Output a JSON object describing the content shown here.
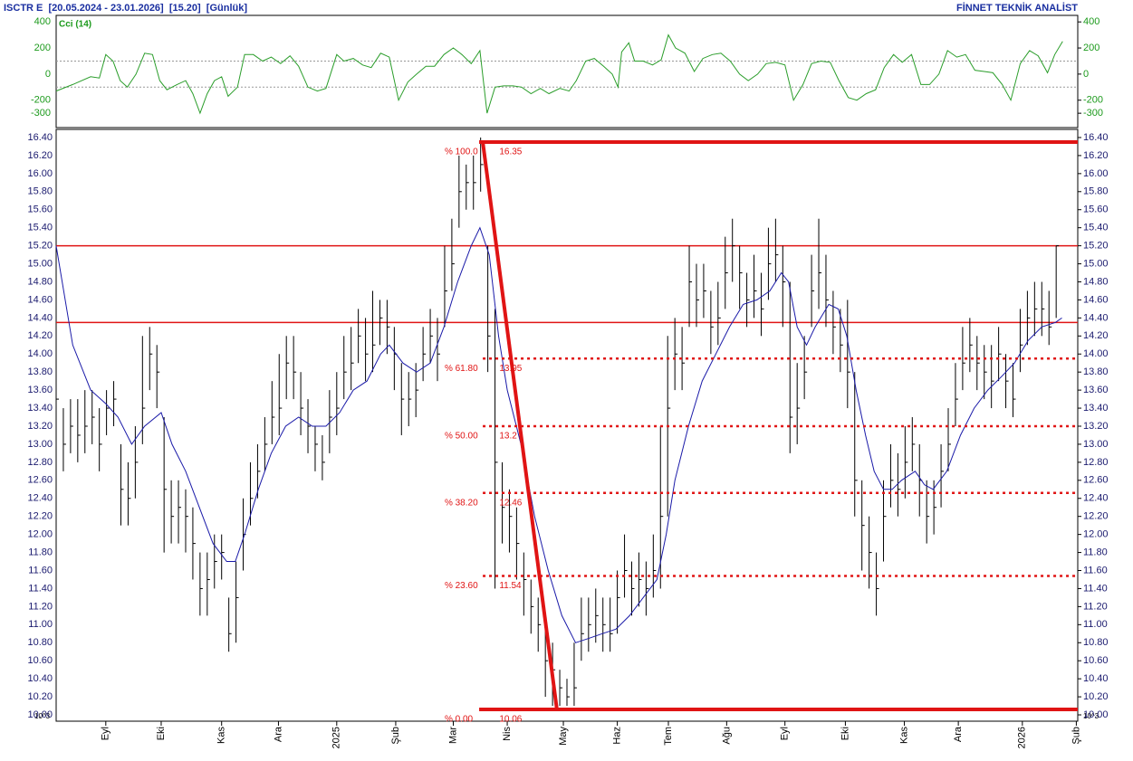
{
  "chart_data": {
    "type": "ohlc",
    "title": "ISCTR E  [20.05.2024 - 23.01.2026]  [15.20]  [Günlük]",
    "source": "FİNNET TEKNİK ANALİST",
    "scale_note": "10^3",
    "xlim": [
      0,
      142
    ],
    "xticks": [
      {
        "value": 6.9,
        "label": "Eyl"
      },
      {
        "value": 14.6,
        "label": "Eki"
      },
      {
        "value": 23,
        "label": "Kas"
      },
      {
        "value": 30.9,
        "label": "Ara"
      },
      {
        "value": 39,
        "label": "2025"
      },
      {
        "value": 47.2,
        "label": "Şub"
      },
      {
        "value": 55.2,
        "label": "Mar"
      },
      {
        "value": 62.7,
        "label": "Nis"
      },
      {
        "value": 70.5,
        "label": "May"
      },
      {
        "value": 78,
        "label": "Haz"
      },
      {
        "value": 85.1,
        "label": "Tem"
      },
      {
        "value": 93.2,
        "label": "Ağu"
      },
      {
        "value": 101.3,
        "label": "Eyl"
      },
      {
        "value": 109.7,
        "label": "Eki"
      },
      {
        "value": 117.9,
        "label": "Kas"
      },
      {
        "value": 125.4,
        "label": "Ara"
      },
      {
        "value": 134.3,
        "label": "2026"
      },
      {
        "value": 141.8,
        "label": "Şub"
      }
    ],
    "ylim": [
      9.93,
      16.49
    ],
    "yticks": [
      {
        "value": 10,
        "label": "10.00"
      },
      {
        "value": 10.2,
        "label": "10.20"
      },
      {
        "value": 10.4,
        "label": "10.40"
      },
      {
        "value": 10.6,
        "label": "10.60"
      },
      {
        "value": 10.8,
        "label": "10.80"
      },
      {
        "value": 11,
        "label": "11.00"
      },
      {
        "value": 11.2,
        "label": "11.20"
      },
      {
        "value": 11.4,
        "label": "11.40"
      },
      {
        "value": 11.6,
        "label": "11.60"
      },
      {
        "value": 11.8,
        "label": "11.80"
      },
      {
        "value": 12,
        "label": "12.00"
      },
      {
        "value": 12.2,
        "label": "12.20"
      },
      {
        "value": 12.4,
        "label": "12.40"
      },
      {
        "value": 12.6,
        "label": "12.60"
      },
      {
        "value": 12.8,
        "label": "12.80"
      },
      {
        "value": 13,
        "label": "13.00"
      },
      {
        "value": 13.2,
        "label": "13.20"
      },
      {
        "value": 13.4,
        "label": "13.40"
      },
      {
        "value": 13.6,
        "label": "13.60"
      },
      {
        "value": 13.8,
        "label": "13.80"
      },
      {
        "value": 14,
        "label": "14.00"
      },
      {
        "value": 14.2,
        "label": "14.20"
      },
      {
        "value": 14.4,
        "label": "14.40"
      },
      {
        "value": 14.6,
        "label": "14.60"
      },
      {
        "value": 14.8,
        "label": "14.80"
      },
      {
        "value": 15,
        "label": "15.00"
      },
      {
        "value": 15.2,
        "label": "15.20"
      },
      {
        "value": 15.4,
        "label": "15.40"
      },
      {
        "value": 15.6,
        "label": "15.60"
      },
      {
        "value": 15.8,
        "label": "15.80"
      },
      {
        "value": 16,
        "label": "16.00"
      },
      {
        "value": 16.2,
        "label": "16.20"
      },
      {
        "value": 16.4,
        "label": "16.40"
      }
    ],
    "bars": {
      "color": "#000000",
      "high": [
        13.8,
        13.4,
        13.5,
        13.5,
        13.6,
        13.6,
        13.4,
        13.6,
        13.7,
        13.0,
        12.8,
        13.2,
        14.2,
        14.3,
        14.1,
        13.3,
        12.6,
        12.6,
        12.5,
        12.3,
        11.8,
        11.8,
        12.0,
        12.0,
        11.3,
        11.7,
        12.4,
        12.8,
        13.0,
        13.3,
        13.7,
        14.0,
        14.2,
        14.2,
        13.8,
        13.5,
        13.2,
        13.1,
        13.6,
        13.8,
        14.2,
        14.3,
        14.5,
        14.4,
        14.7,
        14.6,
        14.6,
        14.3,
        13.9,
        13.8,
        13.9,
        14.3,
        14.5,
        14.4,
        15.2,
        15.5,
        16.2,
        16.1,
        16.2,
        16.4,
        15.2,
        14.5,
        12.8,
        12.5,
        12.3,
        11.8,
        11.5,
        11.3,
        11.0,
        10.8,
        10.5,
        10.4,
        10.8,
        11.3,
        11.3,
        11.4,
        11.3,
        11.3,
        11.6,
        12.0,
        11.7,
        11.8,
        11.7,
        12.0,
        13.2,
        14.2,
        14.4,
        14.3,
        15.2,
        15.0,
        15.0,
        14.7,
        14.8,
        15.3,
        15.5,
        15.2,
        14.9,
        15.1,
        14.9,
        15.4,
        15.5,
        15.2,
        14.8,
        13.9,
        14.2,
        15.1,
        15.5,
        15.1,
        14.7,
        14.5,
        14.6,
        13.8,
        12.6,
        12.2,
        11.8,
        12.6,
        13.0,
        12.9,
        13.2,
        13.3,
        13.0,
        12.6,
        12.6,
        13.0,
        13.4,
        13.9,
        14.3,
        14.4,
        14.2,
        14.1,
        14.1,
        14.3,
        14.0,
        13.9,
        14.5,
        14.7,
        14.8,
        14.8,
        14.7,
        15.2
      ],
      "low": [
        13.2,
        12.7,
        12.9,
        12.8,
        12.9,
        13.0,
        12.7,
        13.1,
        13.2,
        12.1,
        12.1,
        12.4,
        13.0,
        13.6,
        13.4,
        11.8,
        11.9,
        11.9,
        11.8,
        11.5,
        11.1,
        11.1,
        11.4,
        11.5,
        10.7,
        10.8,
        11.6,
        12.1,
        12.4,
        12.7,
        13.0,
        13.1,
        13.5,
        13.5,
        13.1,
        12.9,
        12.7,
        12.6,
        12.9,
        13.1,
        13.5,
        13.6,
        13.9,
        13.7,
        13.8,
        14.1,
        14.0,
        13.6,
        13.1,
        13.2,
        13.3,
        13.7,
        13.9,
        13.7,
        14.3,
        14.7,
        15.4,
        15.6,
        15.6,
        15.8,
        13.8,
        11.4,
        11.9,
        11.8,
        11.5,
        11.1,
        10.9,
        10.7,
        10.2,
        10.1,
        10.1,
        10.1,
        10.1,
        10.6,
        10.7,
        10.8,
        10.7,
        10.7,
        10.9,
        11.3,
        11.1,
        11.2,
        11.1,
        11.3,
        11.4,
        12.2,
        13.6,
        13.6,
        14.3,
        14.3,
        14.4,
        14.0,
        14.1,
        14.5,
        14.8,
        14.5,
        14.3,
        14.4,
        14.2,
        14.6,
        14.8,
        14.3,
        12.9,
        13.0,
        13.5,
        14.3,
        14.5,
        14.3,
        14.0,
        13.8,
        13.4,
        12.2,
        11.6,
        11.4,
        11.1,
        11.7,
        12.3,
        12.2,
        12.4,
        12.7,
        12.2,
        11.9,
        12.0,
        12.3,
        12.7,
        13.2,
        13.6,
        13.8,
        13.6,
        13.5,
        13.4,
        13.7,
        13.4,
        13.3,
        13.8,
        14.1,
        14.2,
        14.2,
        14.1,
        14.4
      ],
      "close": [
        13.5,
        13.0,
        13.2,
        13.1,
        13.2,
        13.3,
        13.0,
        13.4,
        13.5,
        12.5,
        12.4,
        12.8,
        13.4,
        14.0,
        13.8,
        12.5,
        12.2,
        12.3,
        12.2,
        11.9,
        11.4,
        11.5,
        11.7,
        11.8,
        10.9,
        11.3,
        12.0,
        12.4,
        12.7,
        13.0,
        13.3,
        13.4,
        13.9,
        13.8,
        13.4,
        13.2,
        13.0,
        12.8,
        13.3,
        13.4,
        13.8,
        13.9,
        14.2,
        14.0,
        14.1,
        14.4,
        14.3,
        14.0,
        13.5,
        13.5,
        13.6,
        14.0,
        14.2,
        14.0,
        14.7,
        15.0,
        15.8,
        15.9,
        15.9,
        16.1,
        14.2,
        12.8,
        12.3,
        12.2,
        11.9,
        11.5,
        11.2,
        11.0,
        10.6,
        10.5,
        10.3,
        10.2,
        10.3,
        10.9,
        11.0,
        11.1,
        11.0,
        10.9,
        11.3,
        11.6,
        11.4,
        11.5,
        11.4,
        11.6,
        12.2,
        13.4,
        14.0,
        13.9,
        14.8,
        14.6,
        14.7,
        14.3,
        14.4,
        14.9,
        15.2,
        14.9,
        14.6,
        14.7,
        14.5,
        15.0,
        15.1,
        14.8,
        13.3,
        13.4,
        13.8,
        14.7,
        14.9,
        14.6,
        14.3,
        14.1,
        13.8,
        12.6,
        12.1,
        11.8,
        11.4,
        12.2,
        12.6,
        12.5,
        12.8,
        13.0,
        12.6,
        12.2,
        12.3,
        12.7,
        13.0,
        13.5,
        13.9,
        14.1,
        13.9,
        13.8,
        13.7,
        14.0,
        13.7,
        13.5,
        14.1,
        14.4,
        14.5,
        14.5,
        14.3,
        15.2
      ]
    },
    "moving_average": {
      "color": "#1a1aa8",
      "x": [
        0,
        2.3,
        4.8,
        6.9,
        8.6,
        10.5,
        12.3,
        14.6,
        16.1,
        18.0,
        19.9,
        21.8,
        23.7,
        24.9,
        26.2,
        28.1,
        29.9,
        31.9,
        33.7,
        35.6,
        37.5,
        39.4,
        41.3,
        43.2,
        45.1,
        46.3,
        48.2,
        50.1,
        52.0,
        53.9,
        55.8,
        57.7,
        58.9,
        60.2,
        61.5,
        62.7,
        64.6,
        66.5,
        68.4,
        70.3,
        72.2,
        74.1,
        75.9,
        77.8,
        79.7,
        81.6,
        83.5,
        84.8,
        86.0,
        87.9,
        89.8,
        91.7,
        93.6,
        95.5,
        97.4,
        99.2,
        100.8,
        101.8,
        103.0,
        104.3,
        105.5,
        107.4,
        108.7,
        109.9,
        111.2,
        112.5,
        113.7,
        115.0,
        116.2,
        117.5,
        119.4,
        120.7,
        121.9,
        123.8,
        125.7,
        127.6,
        129.5,
        131.4,
        133.2,
        135.1,
        137.0,
        138.9,
        139.8
      ],
      "values": [
        15.2,
        14.1,
        13.6,
        13.45,
        13.3,
        13.0,
        13.2,
        13.35,
        13.0,
        12.7,
        12.3,
        11.9,
        11.7,
        11.7,
        12.0,
        12.5,
        12.9,
        13.2,
        13.3,
        13.2,
        13.2,
        13.35,
        13.6,
        13.7,
        14.0,
        14.1,
        13.9,
        13.8,
        13.9,
        14.3,
        14.8,
        15.2,
        15.4,
        15.1,
        14.2,
        13.6,
        13.0,
        12.2,
        11.6,
        11.1,
        10.8,
        10.85,
        10.9,
        10.95,
        11.1,
        11.3,
        11.5,
        12.0,
        12.6,
        13.2,
        13.7,
        14.0,
        14.3,
        14.55,
        14.6,
        14.7,
        14.9,
        14.8,
        14.3,
        14.1,
        14.3,
        14.55,
        14.5,
        14.2,
        13.6,
        13.1,
        12.7,
        12.5,
        12.5,
        12.6,
        12.7,
        12.55,
        12.5,
        12.7,
        13.1,
        13.4,
        13.6,
        13.75,
        13.9,
        14.15,
        14.3,
        14.35,
        14.4
      ]
    },
    "hlines": {
      "color": "#e01414",
      "values": [
        15.2,
        14.35
      ]
    },
    "fibonacci": {
      "color": "#e01414",
      "start": {
        "x": 59.3,
        "y": 16.35
      },
      "end": {
        "x": 69.6,
        "y": 10.06
      },
      "levels": [
        {
          "pct": {
            "value": 100,
            "label": "% 100.0"
          },
          "value": 16.35
        },
        {
          "pct": {
            "value": 61.8,
            "label": "% 61.80"
          },
          "value": 13.95
        },
        {
          "pct": {
            "value": 50,
            "label": "% 50.00"
          },
          "value": 13.2
        },
        {
          "pct": {
            "value": 38.2,
            "label": "% 38.20"
          },
          "value": 12.46
        },
        {
          "pct": {
            "value": 23.6,
            "label": "% 23.60"
          },
          "value": 11.54
        },
        {
          "pct": {
            "value": 0,
            "label": "% 0.00"
          },
          "value": 10.06
        }
      ]
    },
    "indicator": {
      "type": "line",
      "name": "Cci (14)",
      "color": "#2a9d2a",
      "ylim": [
        -410,
        450
      ],
      "yticks": [
        400,
        200,
        0,
        -200,
        -300
      ],
      "guides": [
        100,
        -100
      ],
      "x": [
        0,
        2.3,
        4.8,
        6.0,
        6.9,
        7.9,
        8.9,
        9.9,
        11.1,
        12.3,
        13.4,
        14.4,
        15.4,
        16.8,
        18.0,
        19.0,
        20.0,
        21.0,
        22.0,
        23.0,
        23.9,
        25.2,
        26.2,
        27.4,
        28.7,
        29.9,
        31.2,
        32.5,
        33.7,
        35.0,
        36.3,
        37.5,
        39.0,
        40.0,
        41.3,
        42.6,
        43.8,
        45.1,
        46.3,
        47.6,
        48.9,
        50.1,
        51.4,
        52.6,
        53.9,
        55.2,
        56.4,
        57.7,
        58.9,
        59.9,
        61.0,
        62.2,
        63.5,
        64.7,
        66.0,
        67.3,
        68.5,
        70.0,
        71.3,
        72.3,
        73.6,
        74.8,
        76.1,
        77.3,
        78.1,
        78.6,
        79.6,
        80.4,
        81.6,
        82.9,
        84.1,
        85.1,
        86.1,
        87.4,
        88.7,
        89.9,
        91.2,
        92.4,
        93.7,
        95.0,
        96.2,
        97.5,
        98.7,
        100.0,
        101.3,
        102.5,
        103.8,
        105.0,
        106.3,
        107.6,
        108.8,
        110.1,
        111.3,
        112.6,
        113.9,
        115.1,
        116.4,
        117.6,
        118.9,
        120.2,
        121.4,
        122.7,
        123.9,
        125.2,
        126.4,
        127.7,
        129.0,
        130.2,
        131.5,
        132.7,
        134.0,
        135.3,
        136.5,
        137.8,
        138.8,
        139.9
      ],
      "values": [
        -130,
        -80,
        -20,
        -30,
        150,
        100,
        -50,
        -100,
        0,
        160,
        150,
        -50,
        -120,
        -80,
        -50,
        -150,
        -300,
        -150,
        -50,
        -20,
        -170,
        -100,
        150,
        150,
        100,
        130,
        80,
        140,
        60,
        -100,
        -130,
        -110,
        150,
        100,
        120,
        70,
        50,
        160,
        130,
        -200,
        -60,
        0,
        60,
        60,
        150,
        200,
        150,
        80,
        180,
        -300,
        -100,
        -90,
        -90,
        -100,
        -150,
        -110,
        -150,
        -110,
        -130,
        -50,
        100,
        120,
        60,
        0,
        -100,
        170,
        240,
        100,
        100,
        70,
        110,
        300,
        200,
        160,
        20,
        120,
        150,
        160,
        100,
        0,
        -50,
        0,
        80,
        90,
        70,
        -200,
        -80,
        80,
        100,
        90,
        -50,
        -180,
        -200,
        -150,
        -120,
        50,
        150,
        90,
        150,
        -80,
        -80,
        0,
        180,
        130,
        150,
        30,
        20,
        10,
        -80,
        -200,
        80,
        180,
        140,
        10,
        150,
        250
      ]
    }
  }
}
